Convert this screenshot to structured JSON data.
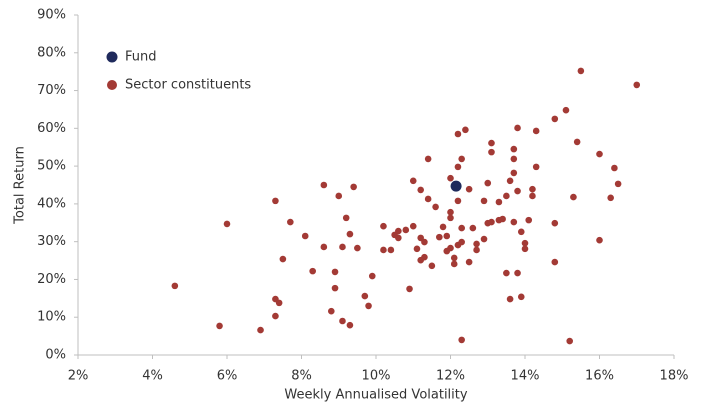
{
  "chart_data": {
    "type": "scatter",
    "xlabel": "Weekly Annualised Volatility",
    "ylabel": "Total Return",
    "xlim": [
      2,
      18
    ],
    "ylim": [
      0,
      90
    ],
    "xticks": [
      {
        "value": 2,
        "label": "2%"
      },
      {
        "value": 4,
        "label": "4%"
      },
      {
        "value": 6,
        "label": "6%"
      },
      {
        "value": 8,
        "label": "8%"
      },
      {
        "value": 10,
        "label": "10%"
      },
      {
        "value": 12,
        "label": "12%"
      },
      {
        "value": 14,
        "label": "14%"
      },
      {
        "value": 16,
        "label": "16%"
      },
      {
        "value": 18,
        "label": "18%"
      }
    ],
    "yticks": [
      {
        "value": 0,
        "label": "0%"
      },
      {
        "value": 10,
        "label": "10%"
      },
      {
        "value": 20,
        "label": "20%"
      },
      {
        "value": 30,
        "label": "30%"
      },
      {
        "value": 40,
        "label": "40%"
      },
      {
        "value": 50,
        "label": "50%"
      },
      {
        "value": 60,
        "label": "60%"
      },
      {
        "value": 70,
        "label": "70%"
      },
      {
        "value": 80,
        "label": "80%"
      },
      {
        "value": 90,
        "label": "90%"
      }
    ],
    "grid": false,
    "legend": "upper-left",
    "series": [
      {
        "name": "Fund",
        "color": "#1f2a5c",
        "x": [
          12.15
        ],
        "values": [
          44.7
        ]
      },
      {
        "name": "Sector constituents",
        "color": "#a33a35",
        "x": [
          4.6,
          5.8,
          6.0,
          6.9,
          7.3,
          7.3,
          7.3,
          7.4,
          7.5,
          7.7,
          8.1,
          8.3,
          8.6,
          8.6,
          8.8,
          8.9,
          9.0,
          8.9,
          9.1,
          9.2,
          9.1,
          9.3,
          9.3,
          9.4,
          9.5,
          9.7,
          9.8,
          9.9,
          10.2,
          10.2,
          10.4,
          10.5,
          10.6,
          10.6,
          10.8,
          10.9,
          11.0,
          11.0,
          11.1,
          11.2,
          11.2,
          11.2,
          11.3,
          11.3,
          11.4,
          11.4,
          11.5,
          11.6,
          11.7,
          11.8,
          11.9,
          11.9,
          12.0,
          12.0,
          12.0,
          12.0,
          12.1,
          12.1,
          12.2,
          12.2,
          12.2,
          12.2,
          12.3,
          12.3,
          12.3,
          12.3,
          12.4,
          12.5,
          12.5,
          12.6,
          12.7,
          12.7,
          12.9,
          12.9,
          13.0,
          13.0,
          13.1,
          13.1,
          13.1,
          13.3,
          13.3,
          13.4,
          13.5,
          13.5,
          13.6,
          13.6,
          13.7,
          13.7,
          13.7,
          13.7,
          13.8,
          13.8,
          13.8,
          13.9,
          13.9,
          14.0,
          14.0,
          14.1,
          14.2,
          14.2,
          14.3,
          14.3,
          14.8,
          14.8,
          14.8,
          15.1,
          15.2,
          15.3,
          15.4,
          15.5,
          16.0,
          16.0,
          16.3,
          16.4,
          16.5,
          17.0
        ],
        "values": [
          18.3,
          7.7,
          34.7,
          6.6,
          40.8,
          14.8,
          10.3,
          13.8,
          25.4,
          35.2,
          31.5,
          22.2,
          28.6,
          45.0,
          11.6,
          17.7,
          42.1,
          22.0,
          28.6,
          36.3,
          9.0,
          32.0,
          7.9,
          44.5,
          28.3,
          15.6,
          13.0,
          20.9,
          34.1,
          27.8,
          27.8,
          31.8,
          32.8,
          31.0,
          33.1,
          17.5,
          46.1,
          34.1,
          28.1,
          25.1,
          31.0,
          43.7,
          29.9,
          25.9,
          41.3,
          51.9,
          23.6,
          39.2,
          31.2,
          33.9,
          31.5,
          27.5,
          46.8,
          37.8,
          28.3,
          36.3,
          25.7,
          24.1,
          29.1,
          40.8,
          49.8,
          58.5,
          4.0,
          29.9,
          33.6,
          51.9,
          59.6,
          43.9,
          24.6,
          33.6,
          27.8,
          29.4,
          40.8,
          30.7,
          45.5,
          34.9,
          56.1,
          53.7,
          35.2,
          40.5,
          35.7,
          36.0,
          42.1,
          21.7,
          14.8,
          46.1,
          54.5,
          35.2,
          51.9,
          48.2,
          43.4,
          60.1,
          21.7,
          32.6,
          15.4,
          29.6,
          28.1,
          35.7,
          43.9,
          42.1,
          59.3,
          49.8,
          34.9,
          24.6,
          62.5,
          64.8,
          3.7,
          41.8,
          56.4,
          75.2,
          53.2,
          30.4,
          41.6,
          49.5,
          45.3,
          71.5
        ]
      }
    ]
  }
}
